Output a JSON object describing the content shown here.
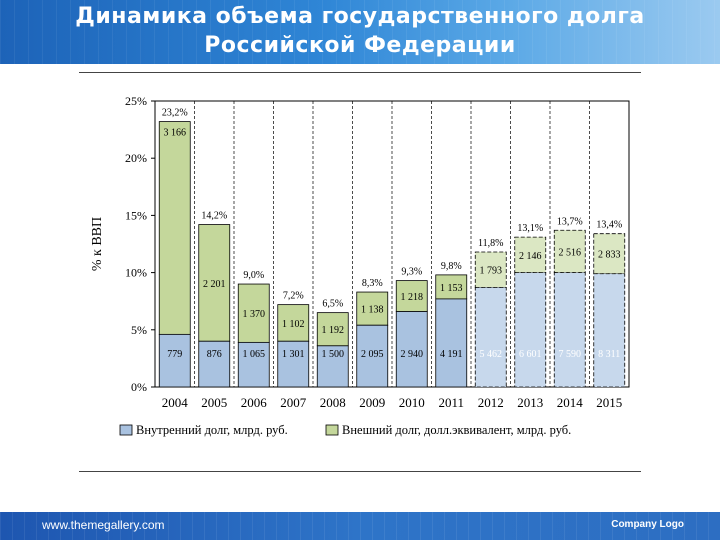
{
  "slide": {
    "title_line1": "Динамика объема государственного долга",
    "title_line2": "Российской  Федерации",
    "website": "www.themegallery.com",
    "company_logo": "Company Logo"
  },
  "colors": {
    "internal": "#a9c2e0",
    "external": "#c4d79b",
    "internal_forecast": "#c7d8ec",
    "external_forecast": "#dbe7c3"
  },
  "chart_data": {
    "type": "bar",
    "stacked": true,
    "ylabel": "% к ВВП",
    "ylim": [
      0,
      25
    ],
    "yticks": [
      "0%",
      "5%",
      "10%",
      "15%",
      "20%",
      "25%"
    ],
    "grid": "vertical-dashed",
    "categories": [
      "2004",
      "2005",
      "2006",
      "2007",
      "2008",
      "2009",
      "2010",
      "2011",
      "2012",
      "2013",
      "2014",
      "2015"
    ],
    "forecast_from_index": 8,
    "totals": [
      "23,2%",
      "14,2%",
      "9,0%",
      "7,2%",
      "6,5%",
      "8,3%",
      "9,3%",
      "9,8%",
      "11,8%",
      "13,1%",
      "13,7%",
      "13,4%"
    ],
    "total_values": [
      23.2,
      14.2,
      9.0,
      7.2,
      6.5,
      8.3,
      9.3,
      9.8,
      11.8,
      13.1,
      13.7,
      13.4
    ],
    "series": [
      {
        "name": "Внутренний долг, млрд. руб.",
        "pct_values": [
          4.6,
          4.0,
          3.9,
          4.0,
          3.6,
          5.4,
          6.6,
          7.7,
          8.7,
          10.0,
          10.0,
          9.9
        ],
        "labels": [
          "779",
          "876",
          "1 065",
          "1 301",
          "1 500",
          "2 095",
          "2 940",
          "4 191",
          "5 462",
          "6 601",
          "7 590",
          "8 311"
        ]
      },
      {
        "name": "Внешний долг, долл.эквивалент, млрд. руб.",
        "pct_values": [
          18.6,
          10.2,
          5.1,
          3.2,
          2.9,
          2.9,
          2.7,
          2.1,
          3.1,
          3.1,
          3.7,
          3.5
        ],
        "labels": [
          "3 166",
          "2 201",
          "1 370",
          "1 102",
          "1 192",
          "1 138",
          "1 218",
          "1 153",
          "1 793",
          "2 146",
          "2 516",
          "2 833"
        ]
      }
    ]
  }
}
